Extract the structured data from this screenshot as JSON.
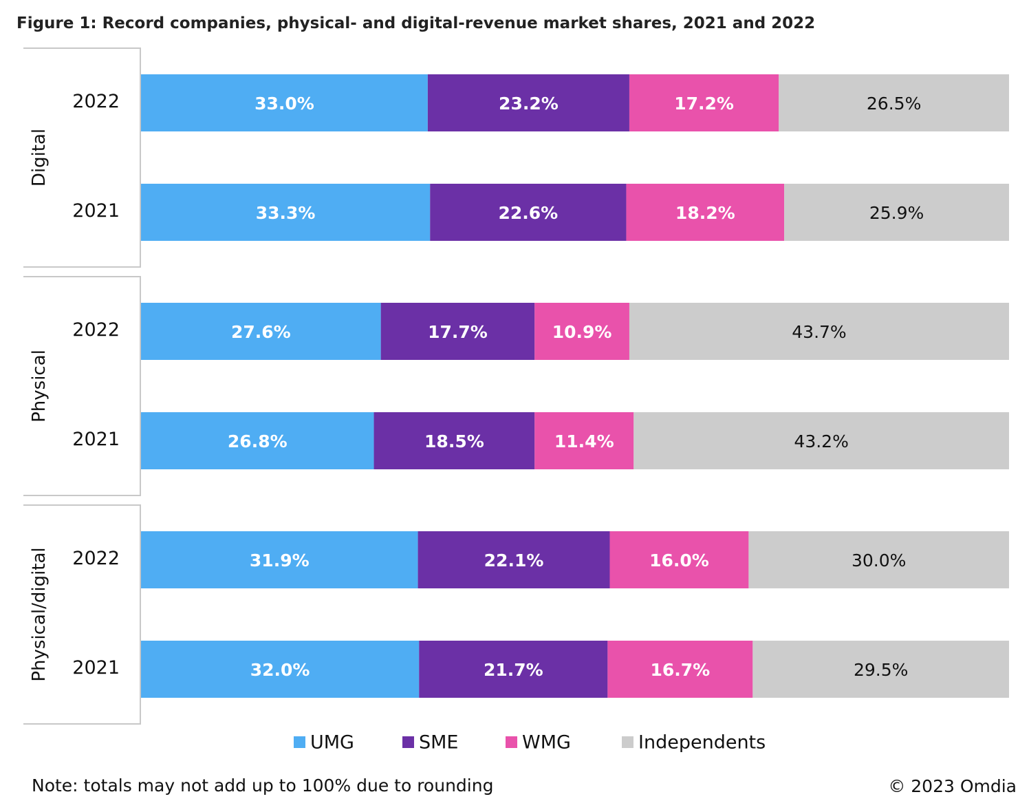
{
  "chart_data": {
    "type": "bar",
    "orientation": "horizontal",
    "stacked": true,
    "title": "Figure 1: Record companies, physical- and digital-revenue market shares, 2021 and 2022",
    "groups": [
      {
        "name": "Digital",
        "rows": [
          {
            "year": "2022",
            "values": [
              33.0,
              23.2,
              17.2,
              26.5
            ],
            "labels": [
              "33.0%",
              "23.2%",
              "17.2%",
              "26.5%"
            ]
          },
          {
            "year": "2021",
            "values": [
              33.3,
              22.6,
              18.2,
              25.9
            ],
            "labels": [
              "33.3%",
              "22.6%",
              "18.2%",
              "25.9%"
            ]
          }
        ]
      },
      {
        "name": "Physical",
        "rows": [
          {
            "year": "2022",
            "values": [
              27.6,
              17.7,
              10.9,
              43.7
            ],
            "labels": [
              "27.6%",
              "17.7%",
              "10.9%",
              "43.7%"
            ]
          },
          {
            "year": "2021",
            "values": [
              26.8,
              18.5,
              11.4,
              43.2
            ],
            "labels": [
              "26.8%",
              "18.5%",
              "11.4%",
              "43.2%"
            ]
          }
        ]
      },
      {
        "name": "Physical/digital",
        "rows": [
          {
            "year": "2022",
            "values": [
              31.9,
              22.1,
              16.0,
              30.0
            ],
            "labels": [
              "31.9%",
              "22.1%",
              "16.0%",
              "30.0%"
            ]
          },
          {
            "year": "2021",
            "values": [
              32.0,
              21.7,
              16.7,
              29.5
            ],
            "labels": [
              "32.0%",
              "21.7%",
              "16.7%",
              "29.5%"
            ]
          }
        ]
      }
    ],
    "series": [
      {
        "name": "UMG",
        "color": "#4fadf3",
        "label_color": "#ffffff"
      },
      {
        "name": "SME",
        "color": "#6b30a6",
        "label_color": "#ffffff"
      },
      {
        "name": "WMG",
        "color": "#e952ab",
        "label_color": "#ffffff"
      },
      {
        "name": "Independents",
        "color": "#cccccc",
        "label_color": "#111111"
      }
    ],
    "legend_position": "bottom",
    "grid": false,
    "note": "Note: totals may not add up to 100% due to rounding",
    "source": "© 2023 Omdia"
  }
}
